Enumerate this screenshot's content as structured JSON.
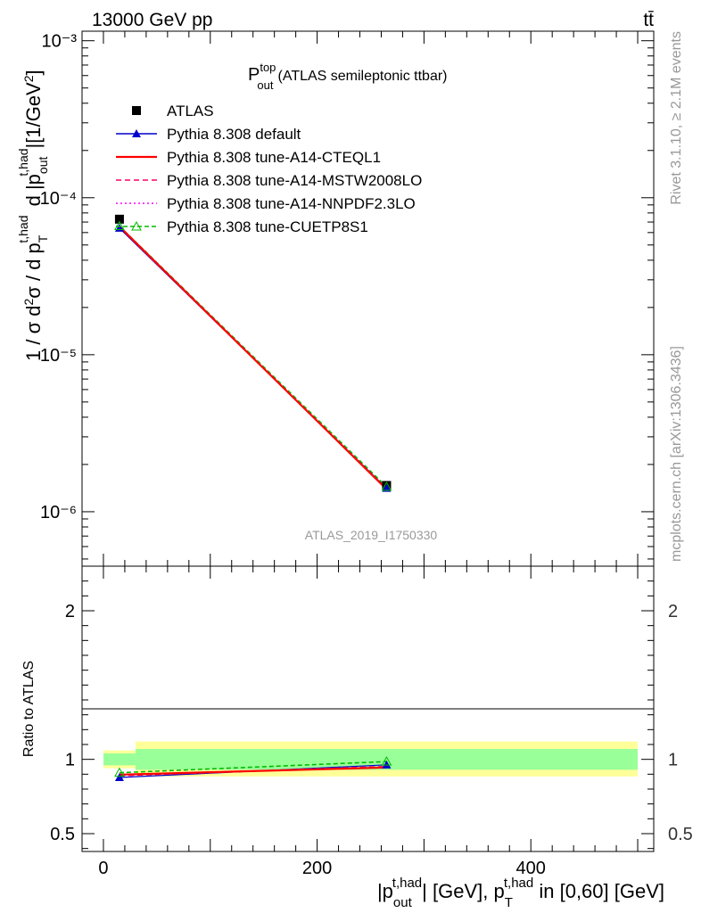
{
  "header": {
    "energy": "13000 GeV pp",
    "process": "tt̄"
  },
  "side_labels": {
    "rivet": "Rivet 3.1.10, ≥ 2.1M events",
    "mcplots": "mcplots.cern.ch [arXiv:1306.3436]"
  },
  "analysis_id": "ATLAS_2019_I1750330",
  "colors": {
    "atlas": "#000000",
    "default": "#0000cc",
    "cteql1": "#ff0000",
    "mstw": "#ff0066",
    "nnpdf": "#ff00ff",
    "cuetp": "#00bb00",
    "band_inner": "#99ff99",
    "band_outer": "#ffff99"
  },
  "chart_data": [
    {
      "type": "line",
      "title_main": "P",
      "title_sup": "top",
      "title_sub": "out",
      "title_rest": "(ATLAS semileptonic ttbar)",
      "ylabel": "1 / σ d²σ / d p_T^{t,had} d |p_out^{t,had}| [1/GeV²]",
      "yscale": "log",
      "ylim": [
        4.5e-07,
        0.00115
      ],
      "xlim": [
        -20,
        515
      ],
      "y_tick_labels": [
        "10⁻⁶",
        "10⁻⁵",
        "10⁻⁴",
        "10⁻³"
      ],
      "bins": [
        [
          0,
          30
        ],
        [
          30,
          500
        ]
      ],
      "x": [
        15,
        265
      ],
      "series": [
        {
          "name": "ATLAS",
          "key": "atlas",
          "marker": "square",
          "values": [
            7.3e-05,
            1.47e-06
          ]
        },
        {
          "name": "Pythia 8.308 default",
          "key": "default",
          "marker": "triangle",
          "values": [
            6.4e-05,
            1.41e-06
          ]
        },
        {
          "name": "Pythia 8.308 tune-A14-CTEQL1",
          "key": "cteql1",
          "marker": "none",
          "values": [
            6.55e-05,
            1.39e-06
          ]
        },
        {
          "name": "Pythia 8.308 tune-A14-MSTW2008LO",
          "key": "mstw",
          "marker": "none",
          "values": [
            6.5e-05,
            1.4e-06
          ]
        },
        {
          "name": "Pythia 8.308 tune-A14-NNPDF2.3LO",
          "key": "nnpdf",
          "marker": "none",
          "values": [
            6.5e-05,
            1.4e-06
          ]
        },
        {
          "name": "Pythia 8.308 tune-CUETP8S1",
          "key": "cuetp",
          "marker": "open-triangle",
          "values": [
            6.6e-05,
            1.44e-06
          ]
        }
      ]
    },
    {
      "type": "line",
      "ylabel": "Ratio to ATLAS",
      "xlabel": "|p_out^{t,had}| [GeV], p_T^{t,had} in [0,60] [GeV]",
      "ylim": [
        0.38,
        2.3
      ],
      "xlim": [
        -20,
        515
      ],
      "x_tick_labels": [
        "0",
        "200",
        "400"
      ],
      "y_tick_labels": [
        "0.5",
        "1",
        "2"
      ],
      "band_inner": [
        [
          0.96,
          1.04
        ],
        [
          0.93,
          1.07
        ]
      ],
      "band_outer": [
        [
          0.94,
          1.06
        ],
        [
          0.885,
          1.12
        ]
      ],
      "series": [
        {
          "name": "Pythia 8.308 default",
          "key": "default",
          "values": [
            0.878,
            0.963
          ]
        },
        {
          "name": "Pythia 8.308 tune-A14-CTEQL1",
          "key": "cteql1",
          "values": [
            0.897,
            0.945
          ]
        },
        {
          "name": "Pythia 8.308 tune-A14-MSTW2008LO",
          "key": "mstw",
          "values": [
            0.89,
            0.952
          ]
        },
        {
          "name": "Pythia 8.308 tune-A14-NNPDF2.3LO",
          "key": "nnpdf",
          "values": [
            0.893,
            0.95
          ]
        },
        {
          "name": "Pythia 8.308 tune-CUETP8S1",
          "key": "cuetp",
          "values": [
            0.91,
            0.985
          ]
        }
      ]
    }
  ]
}
